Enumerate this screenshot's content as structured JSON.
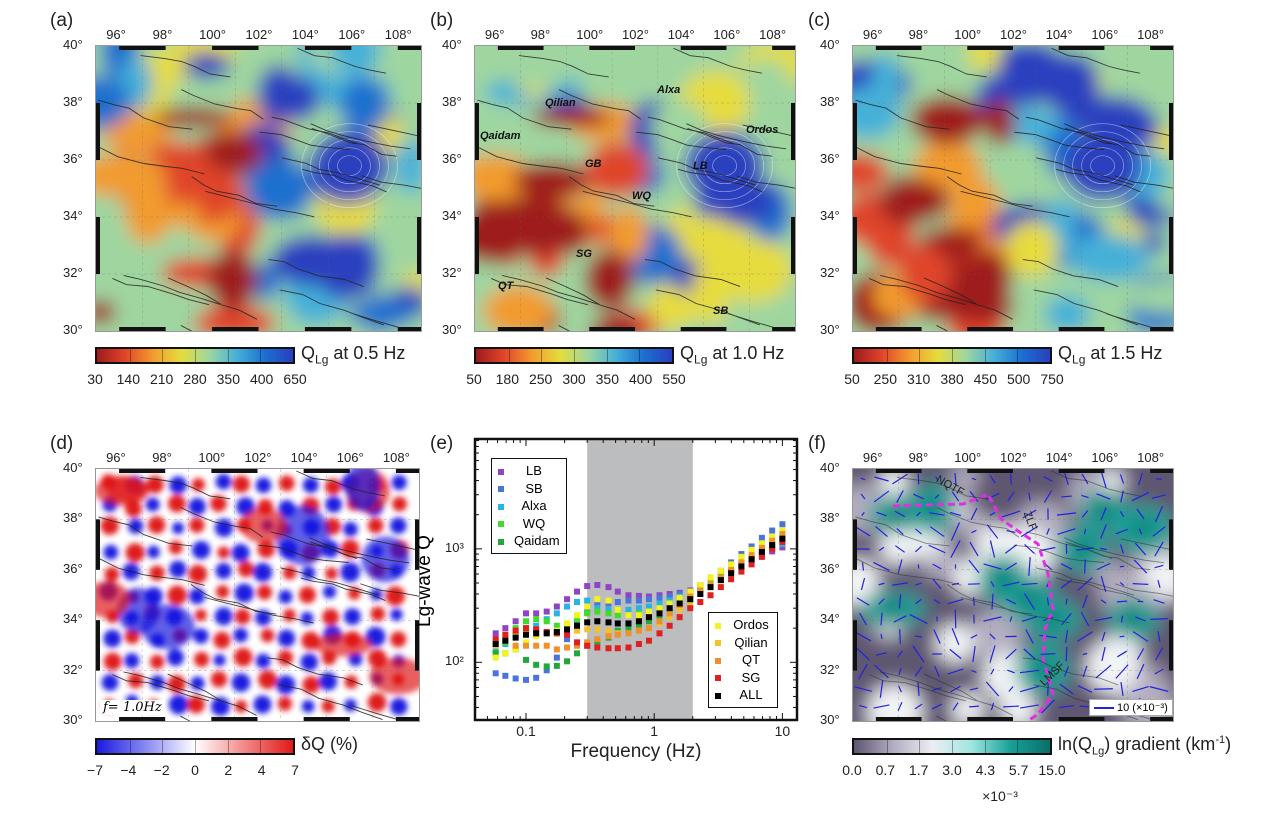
{
  "panels": {
    "a": {
      "letter": "(a)",
      "cbar_title_main": "Q",
      "cbar_title_sub": "Lg",
      "cbar_title_rest": " at 0.5 Hz",
      "cbar_ticks": [
        "30",
        "140",
        "210",
        "280",
        "350",
        "400",
        "650"
      ],
      "palette": [
        "#9e1b1b",
        "#e0452a",
        "#f29b2e",
        "#e6dc3c",
        "#9fd6a0",
        "#45b0d8",
        "#1c6fcf",
        "#2a3fbf"
      ]
    },
    "b": {
      "letter": "(b)",
      "cbar_title_main": "Q",
      "cbar_title_sub": "Lg",
      "cbar_title_rest": " at 1.0 Hz",
      "cbar_ticks": [
        "50",
        "180",
        "250",
        "300",
        "350",
        "400",
        "550"
      ],
      "palette": [
        "#9e1b1b",
        "#e0452a",
        "#f29b2e",
        "#e6dc3c",
        "#9fd6a0",
        "#45b0d8",
        "#1c6fcf",
        "#2a3fbf"
      ],
      "regions": [
        "Qilian",
        "Alxa",
        "Qaidam",
        "GB",
        "LB",
        "Ordos",
        "WQ",
        "SG",
        "QT",
        "SB"
      ]
    },
    "c": {
      "letter": "(c)",
      "cbar_title_main": "Q",
      "cbar_title_sub": "Lg",
      "cbar_title_rest": " at 1.5 Hz",
      "cbar_ticks": [
        "50",
        "250",
        "310",
        "380",
        "450",
        "500",
        "750"
      ],
      "palette": [
        "#9e1b1b",
        "#e0452a",
        "#f29b2e",
        "#e6dc3c",
        "#9fd6a0",
        "#45b0d8",
        "#1c6fcf",
        "#2a3fbf"
      ]
    },
    "d": {
      "letter": "(d)",
      "annotation": "f= 1.0Hz",
      "cbar_title": "δQ (%)",
      "cbar_ticks": [
        "−7",
        "−4",
        "−2",
        "0",
        "2",
        "4",
        "7"
      ],
      "palette": [
        "#1a1ae0",
        "#ffffff",
        "#e01a1a"
      ]
    },
    "e": {
      "letter": "(e)"
    },
    "f": {
      "letter": "(f)",
      "cbar_title_pre": "ln(Q",
      "cbar_title_sub": "Lg",
      "cbar_title_post": ") gradient (km",
      "cbar_title_sup": "-1",
      "cbar_title_end": ")",
      "cbar_ticks": [
        "0.0",
        "0.7",
        "1.7",
        "3.0",
        "4.3",
        "5.7",
        "15.0"
      ],
      "cbar_multiplier": "×10⁻³",
      "faults": [
        "NQTF",
        "ZLF",
        "LMSF"
      ],
      "scale_label": "10 (×10⁻³)",
      "palette": [
        "#5e5672",
        "#b3adc0",
        "#f2f4f6",
        "#17a097",
        "#0b6f6a"
      ]
    }
  },
  "lon_labels": [
    "96°",
    "98°",
    "100°",
    "102°",
    "104°",
    "106°",
    "108°"
  ],
  "lat_labels": [
    "40°",
    "38°",
    "36°",
    "34°",
    "32°",
    "30°"
  ],
  "chart_data": {
    "type": "scatter",
    "xlabel": "Frequency (Hz)",
    "ylabel": "Lg-wave Q",
    "xscale": "log",
    "yscale": "log",
    "xlim": [
      0.04,
      13
    ],
    "ylim": [
      31,
      9300
    ],
    "xticks": [
      "0.1",
      "1",
      "10"
    ],
    "yticks": [
      "10²",
      "10³"
    ],
    "shaded_band_hz": [
      0.3,
      2.0
    ],
    "legend_left": "top-left",
    "legend_right": "bottom-right",
    "x": [
      0.058,
      0.069,
      0.083,
      0.1,
      0.12,
      0.145,
      0.174,
      0.209,
      0.25,
      0.3,
      0.36,
      0.44,
      0.52,
      0.63,
      0.76,
      0.91,
      1.1,
      1.32,
      1.58,
      1.91,
      2.29,
      2.75,
      3.31,
      3.98,
      4.79,
      5.75,
      6.92,
      8.32,
      10
    ],
    "series": [
      {
        "name": "LB",
        "color": "#8e44c8",
        "values": [
          180,
          200,
          230,
          270,
          270,
          280,
          310,
          360,
          420,
          470,
          480,
          460,
          420,
          390,
          385,
          380,
          390,
          400,
          410,
          430,
          470,
          520,
          570,
          640,
          720,
          800,
          880,
          950,
          1030
        ]
      },
      {
        "name": "SB",
        "color": "#4a74d9",
        "values": [
          80,
          76,
          72,
          70,
          73,
          85,
          110,
          160,
          220,
          280,
          330,
          330,
          340,
          350,
          350,
          360,
          370,
          380,
          400,
          420,
          480,
          560,
          640,
          760,
          900,
          1050,
          1250,
          1450,
          1650
        ]
      },
      {
        "name": "Alxa",
        "color": "#25b5e0",
        "values": [
          130,
          145,
          175,
          200,
          210,
          240,
          270,
          310,
          340,
          350,
          300,
          290,
          290,
          290,
          300,
          310,
          330,
          350,
          380,
          410,
          450,
          500,
          560,
          620,
          700,
          800,
          900,
          1000,
          1100
        ]
      },
      {
        "name": "WQ",
        "color": "#3fdc2a",
        "values": [
          120,
          150,
          200,
          230,
          240,
          230,
          210,
          220,
          240,
          270,
          280,
          270,
          260,
          260,
          270,
          280,
          300,
          330,
          360,
          400,
          450,
          510,
          580,
          660,
          750,
          850,
          980,
          1100,
          1250
        ]
      },
      {
        "name": "Qaidam",
        "color": "#22a83a",
        "values": [
          120,
          120,
          130,
          105,
          95,
          92,
          93,
          102,
          120,
          140,
          150,
          165,
          190,
          200,
          210,
          230,
          250,
          280,
          320,
          360,
          410,
          470,
          540,
          620,
          710,
          810,
          920,
          1050,
          1200
        ]
      },
      {
        "name": "Ordos",
        "color": "#f3f320",
        "values": [
          110,
          120,
          130,
          150,
          170,
          180,
          190,
          220,
          260,
          310,
          360,
          350,
          290,
          260,
          260,
          280,
          300,
          330,
          370,
          420,
          480,
          560,
          640,
          730,
          850,
          980,
          1120,
          1280,
          1450
        ]
      },
      {
        "name": "Qilian",
        "color": "#f2c22a",
        "values": [
          140,
          160,
          170,
          180,
          180,
          185,
          180,
          190,
          190,
          195,
          195,
          190,
          180,
          180,
          190,
          200,
          220,
          250,
          290,
          340,
          400,
          460,
          530,
          620,
          720,
          830,
          950,
          1100,
          1250
        ]
      },
      {
        "name": "QT",
        "color": "#f0902a",
        "values": [
          150,
          155,
          140,
          140,
          140,
          140,
          130,
          135,
          140,
          150,
          160,
          170,
          175,
          180,
          190,
          200,
          230,
          270,
          320,
          380,
          430,
          490,
          560,
          650,
          760,
          880,
          1020,
          1180,
          1350
        ]
      },
      {
        "name": "SG",
        "color": "#e02020",
        "values": [
          160,
          175,
          190,
          200,
          195,
          185,
          180,
          175,
          150,
          140,
          135,
          133,
          133,
          135,
          145,
          155,
          180,
          210,
          250,
          300,
          340,
          390,
          460,
          540,
          630,
          730,
          850,
          1000,
          1150
        ]
      },
      {
        "name": "ALL",
        "color": "#000000",
        "values": [
          145,
          155,
          165,
          175,
          180,
          180,
          185,
          195,
          210,
          225,
          230,
          225,
          220,
          220,
          230,
          250,
          270,
          300,
          330,
          360,
          400,
          460,
          530,
          610,
          700,
          810,
          940,
          1080,
          1230
        ]
      }
    ]
  }
}
